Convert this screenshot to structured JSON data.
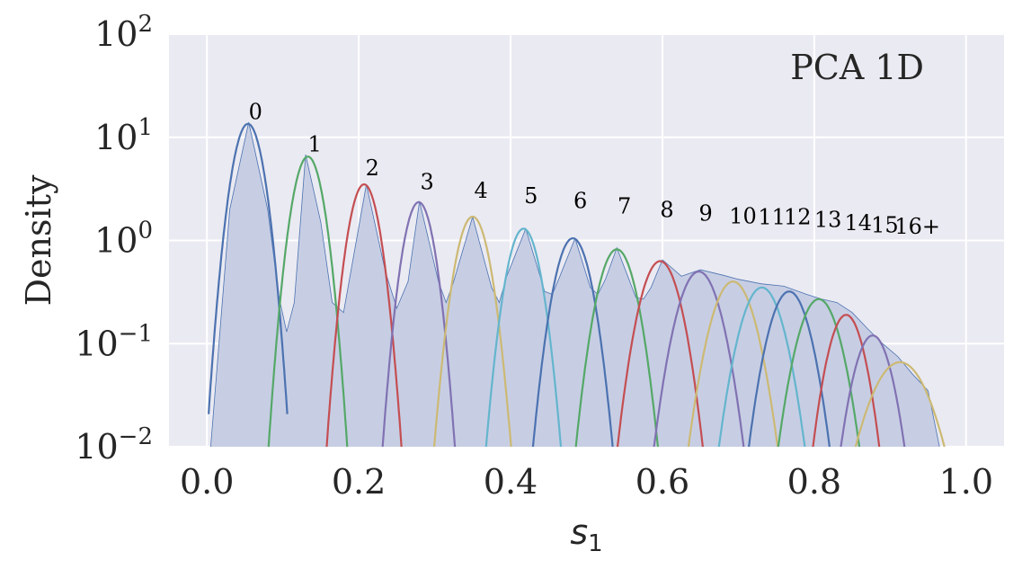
{
  "chart_data": {
    "type": "area",
    "annotation": "PCA 1D",
    "xlabel_base": "s",
    "xlabel_sub": "1",
    "ylabel": "Density",
    "y_scale": "log",
    "xlim": [
      -0.05,
      1.05
    ],
    "ylim": [
      0.01,
      100
    ],
    "grid": true,
    "x_ticks": [
      {
        "value": 0.0,
        "label": "0.0"
      },
      {
        "value": 0.2,
        "label": "0.2"
      },
      {
        "value": 0.4,
        "label": "0.4"
      },
      {
        "value": 0.6,
        "label": "0.6"
      },
      {
        "value": 0.8,
        "label": "0.8"
      },
      {
        "value": 1.0,
        "label": "1.0"
      }
    ],
    "y_ticks": [
      {
        "value": 0.01,
        "base": "10",
        "exp": "−2"
      },
      {
        "value": 0.1,
        "base": "10",
        "exp": "−1"
      },
      {
        "value": 1,
        "base": "10",
        "exp": "0"
      },
      {
        "value": 10,
        "base": "10",
        "exp": "1"
      },
      {
        "value": 100,
        "base": "10",
        "exp": "2"
      }
    ],
    "histogram": {
      "color": "#4c72b0",
      "fill": "#c7cee4",
      "x": [
        0.005,
        0.03,
        0.055,
        0.08,
        0.095,
        0.105,
        0.115,
        0.13,
        0.15,
        0.165,
        0.18,
        0.21,
        0.235,
        0.25,
        0.265,
        0.28,
        0.305,
        0.315,
        0.325,
        0.35,
        0.375,
        0.385,
        0.395,
        0.42,
        0.445,
        0.455,
        0.465,
        0.485,
        0.505,
        0.515,
        0.525,
        0.54,
        0.565,
        0.575,
        0.585,
        0.6,
        0.625,
        0.65,
        0.68,
        0.7,
        0.73,
        0.76,
        0.79,
        0.81,
        0.83,
        0.85,
        0.87,
        0.89,
        0.91,
        0.93,
        0.95,
        0.965
      ],
      "y": [
        0.01,
        2.0,
        14.0,
        2.0,
        0.28,
        0.13,
        0.25,
        6.8,
        1.5,
        0.25,
        0.2,
        3.5,
        0.5,
        0.22,
        0.4,
        2.4,
        0.4,
        0.25,
        0.4,
        1.7,
        0.35,
        0.25,
        0.45,
        1.3,
        0.32,
        0.3,
        0.45,
        1.05,
        0.35,
        0.3,
        0.42,
        0.85,
        0.28,
        0.27,
        0.35,
        0.65,
        0.45,
        0.52,
        0.46,
        0.42,
        0.38,
        0.36,
        0.3,
        0.27,
        0.25,
        0.2,
        0.14,
        0.1,
        0.075,
        0.05,
        0.035,
        0.01
      ]
    },
    "series": [
      {
        "label": "0",
        "mu": 0.054,
        "sigma": 0.0144,
        "peak": 13.5,
        "color": "#4c72b0"
      },
      {
        "label": "1",
        "mu": 0.133,
        "sigma": 0.0144,
        "peak": 6.5,
        "color": "#55a868"
      },
      {
        "label": "2",
        "mu": 0.207,
        "sigma": 0.0144,
        "peak": 3.5,
        "color": "#c44e52"
      },
      {
        "label": "3",
        "mu": 0.279,
        "sigma": 0.0144,
        "peak": 2.35,
        "color": "#8172b2"
      },
      {
        "label": "4",
        "mu": 0.35,
        "sigma": 0.0158,
        "peak": 1.7,
        "color": "#ccb974"
      },
      {
        "label": "5",
        "mu": 0.417,
        "sigma": 0.0158,
        "peak": 1.3,
        "color": "#64b5cd"
      },
      {
        "label": "6",
        "mu": 0.482,
        "sigma": 0.0172,
        "peak": 1.05,
        "color": "#4c72b0"
      },
      {
        "label": "7",
        "mu": 0.54,
        "sigma": 0.0182,
        "peak": 0.82,
        "color": "#55a868"
      },
      {
        "label": "8",
        "mu": 0.597,
        "sigma": 0.0195,
        "peak": 0.63,
        "color": "#c44e52"
      },
      {
        "label": "9",
        "mu": 0.648,
        "sigma": 0.0211,
        "peak": 0.5,
        "color": "#8172b2"
      },
      {
        "label": "10",
        "mu": 0.693,
        "sigma": 0.0216,
        "peak": 0.4,
        "color": "#ccb974"
      },
      {
        "label": "11",
        "mu": 0.731,
        "sigma": 0.0212,
        "peak": 0.35,
        "color": "#64b5cd"
      },
      {
        "label": "12",
        "mu": 0.767,
        "sigma": 0.0202,
        "peak": 0.32,
        "color": "#4c72b0"
      },
      {
        "label": "13",
        "mu": 0.806,
        "sigma": 0.0208,
        "peak": 0.27,
        "color": "#55a868"
      },
      {
        "label": "14",
        "mu": 0.842,
        "sigma": 0.018,
        "peak": 0.19,
        "color": "#c44e52"
      },
      {
        "label": "15",
        "mu": 0.877,
        "sigma": 0.0188,
        "peak": 0.12,
        "color": "#8172b2"
      },
      {
        "label": "16+",
        "mu": 0.913,
        "sigma": 0.0301,
        "peak": 0.066,
        "color": "#ccb974"
      }
    ],
    "peak_labels": [
      {
        "text": "0",
        "x": 0.064,
        "y": 15.0
      },
      {
        "text": "1",
        "x": 0.142,
        "y": 7.3
      },
      {
        "text": "2",
        "x": 0.218,
        "y": 4.3
      },
      {
        "text": "3",
        "x": 0.29,
        "y": 3.15
      },
      {
        "text": "4",
        "x": 0.361,
        "y": 2.6
      },
      {
        "text": "5",
        "x": 0.427,
        "y": 2.3
      },
      {
        "text": "6",
        "x": 0.492,
        "y": 2.05
      },
      {
        "text": "7",
        "x": 0.55,
        "y": 1.82
      },
      {
        "text": "8",
        "x": 0.606,
        "y": 1.68
      },
      {
        "text": "9",
        "x": 0.657,
        "y": 1.55
      },
      {
        "text": "10",
        "x": 0.706,
        "y": 1.47
      },
      {
        "text": "11",
        "x": 0.744,
        "y": 1.43
      },
      {
        "text": "12",
        "x": 0.778,
        "y": 1.43
      },
      {
        "text": "13",
        "x": 0.818,
        "y": 1.35
      },
      {
        "text": "14",
        "x": 0.858,
        "y": 1.26
      },
      {
        "text": "15",
        "x": 0.893,
        "y": 1.2
      },
      {
        "text": "16+",
        "x": 0.936,
        "y": 1.16
      }
    ],
    "colors": {
      "axes_bg": "#eaeaf2",
      "grid": "#ffffff",
      "text": "#262626"
    }
  }
}
